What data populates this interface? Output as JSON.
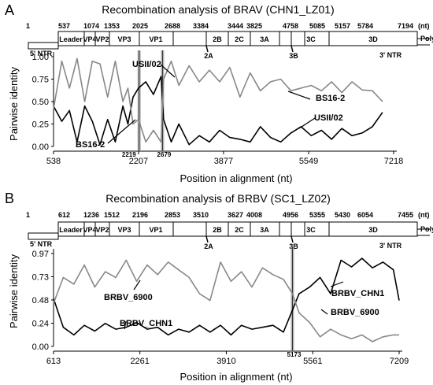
{
  "chart_data": [
    {
      "type": "line",
      "panel_letter": "A",
      "title": "Recombination analysis of BRAV (CHN1_LZ01)",
      "genome": {
        "positions": [
          "1",
          "537",
          "1074",
          "1353",
          "2025",
          "2688",
          "3384",
          "3444",
          "3825",
          "4758",
          "5085",
          "5157",
          "5784",
          "7194"
        ],
        "unit": "(nt)",
        "five_prime": "5' NTR",
        "three_prime": "3' NTR",
        "polya": "PolyA",
        "genes": [
          "Leader",
          "VP4",
          "VP2",
          "VP3",
          "VP1",
          "2B",
          "2C",
          "3A",
          "3C",
          "3D"
        ],
        "small_genes": [
          "2A",
          "3B"
        ]
      },
      "xlabel": "Position in alignment (nt)",
      "ylabel": "Pairwise identity",
      "xticks": [
        "538",
        "2207",
        "3877",
        "5549",
        "7218"
      ],
      "yticks": [
        "0.00",
        "0.25",
        "0.50",
        "0.75",
        "1.00"
      ],
      "xlim": [
        538,
        7218
      ],
      "ylim": [
        0,
        1
      ],
      "breakpoints": [
        {
          "label": "2219",
          "x": 2219
        },
        {
          "label": "2679",
          "x": 2679
        }
      ],
      "series": [
        {
          "name": "USII/02",
          "color": "#000000",
          "x": [
            538,
            700,
            850,
            1000,
            1150,
            1300,
            1450,
            1600,
            1750,
            1900,
            2000,
            2100,
            2207,
            2350,
            2500,
            2650,
            2700,
            2850,
            3000,
            3200,
            3400,
            3600,
            3800,
            4000,
            4200,
            4400,
            4600,
            4800,
            5000,
            5200,
            5400,
            5600,
            5800,
            6000,
            6200,
            6400,
            6600,
            6800,
            7000
          ],
          "y": [
            0.45,
            0.28,
            0.4,
            0.05,
            0.45,
            0.28,
            0.02,
            0.3,
            0.05,
            0.45,
            0.25,
            0.55,
            0.65,
            0.72,
            0.58,
            0.78,
            0.3,
            0.05,
            0.25,
            0.02,
            0.12,
            0.05,
            0.18,
            0.1,
            0.08,
            0.05,
            0.22,
            0.1,
            0.05,
            0.15,
            0.22,
            0.12,
            0.18,
            0.08,
            0.2,
            0.12,
            0.15,
            0.22,
            0.38
          ]
        },
        {
          "name": "BS16-2",
          "color": "#888888",
          "x": [
            538,
            700,
            850,
            1000,
            1150,
            1300,
            1450,
            1600,
            1750,
            1900,
            2000,
            2100,
            2207,
            2350,
            2500,
            2650,
            2700,
            2850,
            3000,
            3200,
            3400,
            3600,
            3800,
            4000,
            4200,
            4400,
            4600,
            4800,
            5000,
            5200,
            5400,
            5600,
            5800,
            6000,
            6200,
            6400,
            6600,
            6800,
            7000
          ],
          "y": [
            0.42,
            0.95,
            0.65,
            0.98,
            0.5,
            0.95,
            0.92,
            0.55,
            0.95,
            0.5,
            0.65,
            0.25,
            0.3,
            0.05,
            0.18,
            0.05,
            0.75,
            0.95,
            0.68,
            0.9,
            0.72,
            0.85,
            0.72,
            0.88,
            0.55,
            0.82,
            0.62,
            0.72,
            0.75,
            0.62,
            0.65,
            0.68,
            0.62,
            0.72,
            0.6,
            0.72,
            0.63,
            0.62,
            0.5
          ]
        }
      ],
      "annotations": [
        {
          "text": "USII/02",
          "target": "upper-left"
        },
        {
          "text": "BS16-2",
          "target": "upper-right"
        },
        {
          "text": "BS16-2",
          "target": "lower-left"
        },
        {
          "text": "USII/02",
          "target": "lower-right"
        }
      ]
    },
    {
      "type": "line",
      "panel_letter": "B",
      "title": "Recombination analysis of  BRBV (SC1_LZ02)",
      "genome": {
        "positions": [
          "1",
          "612",
          "1236",
          "1512",
          "2196",
          "2853",
          "3510",
          "3627",
          "4008",
          "4956",
          "5355",
          "5430",
          "6054",
          "7455"
        ],
        "unit": "(nt)",
        "five_prime": "5' NTR",
        "three_prime": "3' NTR",
        "polya": "PolyA",
        "genes": [
          "Leader",
          "VP4",
          "VP2",
          "VP3",
          "VP1",
          "2B",
          "2C",
          "3A",
          "3C",
          "3D"
        ],
        "small_genes": [
          "2A",
          "3B"
        ]
      },
      "xlabel": "Position in alignment (nt)",
      "ylabel": "Pairwise identity",
      "xticks": [
        "613",
        "2261",
        "3910",
        "5561",
        "7209"
      ],
      "yticks": [
        "0.00",
        "0.24",
        "0.48",
        "0.73",
        "0.97"
      ],
      "xlim": [
        613,
        7209
      ],
      "ylim": [
        0,
        0.97
      ],
      "breakpoints": [
        {
          "label": "5173",
          "x": 5173
        }
      ],
      "series": [
        {
          "name": "BRBV_CHN1",
          "color": "#000000",
          "x": [
            613,
            800,
            1000,
            1200,
            1400,
            1600,
            1800,
            2000,
            2200,
            2400,
            2600,
            2800,
            3000,
            3200,
            3400,
            3600,
            3800,
            4000,
            4200,
            4400,
            4600,
            4800,
            5000,
            5173,
            5300,
            5500,
            5700,
            5900,
            6100,
            6300,
            6500,
            6700,
            6900,
            7100,
            7209
          ],
          "y": [
            0.5,
            0.2,
            0.12,
            0.22,
            0.16,
            0.24,
            0.18,
            0.2,
            0.25,
            0.18,
            0.2,
            0.12,
            0.18,
            0.15,
            0.22,
            0.15,
            0.22,
            0.12,
            0.22,
            0.18,
            0.2,
            0.22,
            0.15,
            0.38,
            0.55,
            0.62,
            0.72,
            0.55,
            0.9,
            0.83,
            0.92,
            0.82,
            0.88,
            0.8,
            0.48
          ]
        },
        {
          "name": "BRBV_6900",
          "color": "#888888",
          "x": [
            613,
            800,
            1000,
            1200,
            1400,
            1600,
            1800,
            2000,
            2200,
            2400,
            2600,
            2800,
            3000,
            3200,
            3400,
            3600,
            3800,
            4000,
            4200,
            4400,
            4600,
            4800,
            5000,
            5173,
            5300,
            5500,
            5700,
            5900,
            6100,
            6300,
            6500,
            6700,
            6900,
            7100,
            7209
          ],
          "y": [
            0.45,
            0.72,
            0.65,
            0.85,
            0.62,
            0.78,
            0.72,
            0.9,
            0.68,
            0.85,
            0.75,
            0.88,
            0.8,
            0.72,
            0.55,
            0.48,
            0.88,
            0.68,
            0.78,
            0.62,
            0.82,
            0.75,
            0.7,
            0.55,
            0.35,
            0.25,
            0.1,
            0.18,
            0.12,
            0.08,
            0.12,
            0.05,
            0.1,
            0.12,
            0.12
          ]
        }
      ],
      "annotations": [
        {
          "text": "BRBV_6900",
          "target": "upper-left"
        },
        {
          "text": "BRBV_CHN1",
          "target": "upper-right"
        },
        {
          "text": "BRBV_CHN1",
          "target": "lower-left"
        },
        {
          "text": "BRBV_6900",
          "target": "lower-right"
        }
      ]
    }
  ]
}
